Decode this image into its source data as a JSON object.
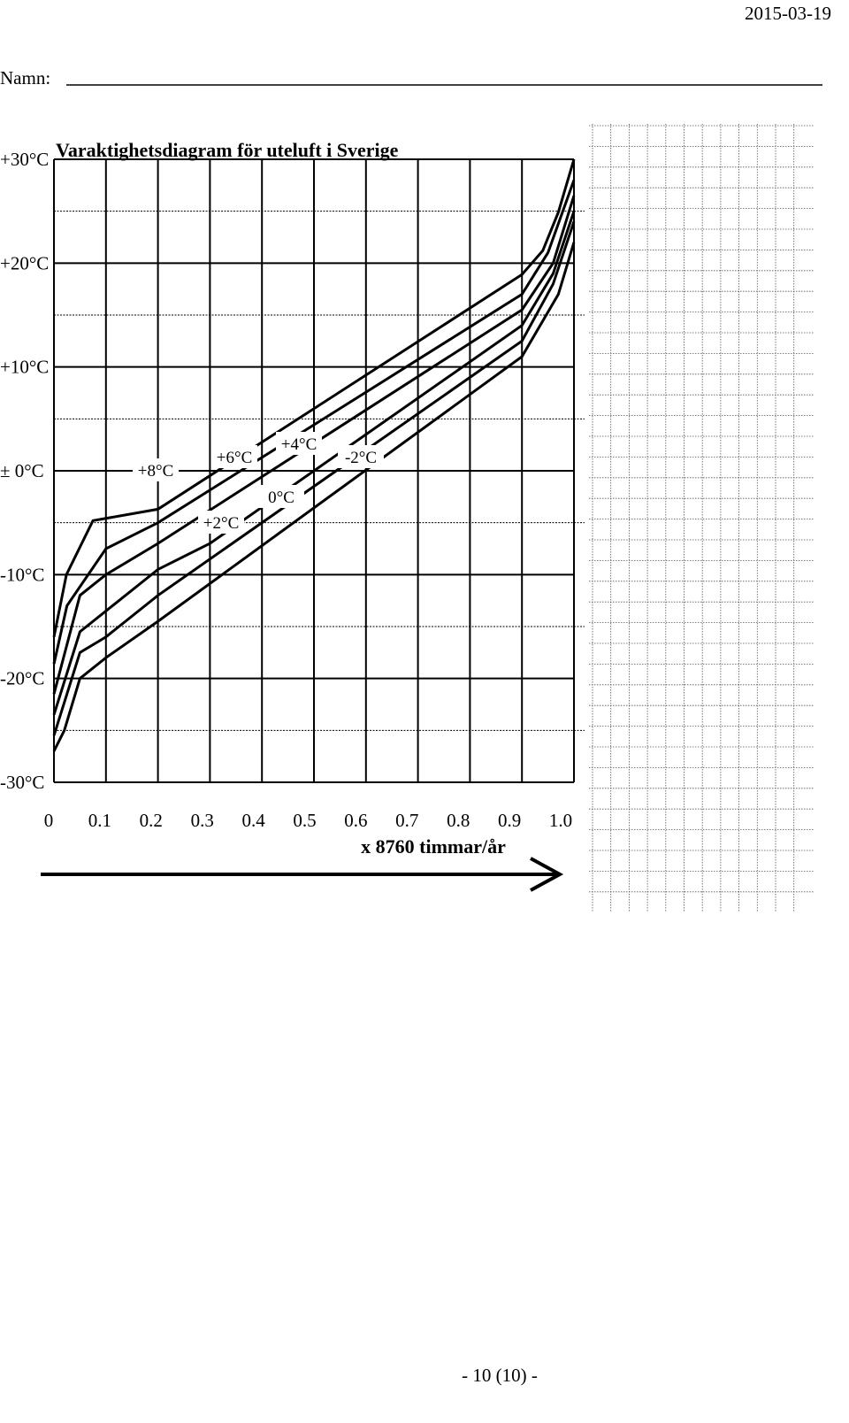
{
  "header": {
    "date": "2015-03-19",
    "name_label": "Namn:"
  },
  "footer": {
    "page_number": "- 10 (10) -"
  },
  "chart_data": {
    "type": "line",
    "title": "Varaktighetsdiagram för uteluft i Sverige",
    "x_label": "x 8760 timmar/år",
    "xlim": [
      0,
      1
    ],
    "ylim": [
      -30,
      30
    ],
    "xticks": [
      0,
      0.1,
      0.2,
      0.3,
      0.4,
      0.5,
      0.6,
      0.7,
      0.8,
      0.9,
      {
        "value": 1,
        "label": "1.0"
      }
    ],
    "yticks": [
      {
        "value": 30,
        "label": "+30°C"
      },
      {
        "value": 20,
        "label": "+20°C"
      },
      {
        "value": 10,
        "label": "+10°C"
      },
      {
        "value": 0,
        "label": "± 0°C"
      },
      {
        "value": -10,
        "label": "-10°C"
      },
      {
        "value": -20,
        "label": "-20°C"
      },
      {
        "value": -30,
        "label": "-30°C"
      }
    ],
    "grid": true,
    "series": [
      {
        "name": "+8°C",
        "color": "#000000",
        "x": [
          0,
          0.024,
          0.075,
          0.2,
          0.9,
          0.94,
          0.97,
          1.0
        ],
        "values": [
          -16,
          -10,
          -4.8,
          -3.7,
          18.9,
          21.2,
          24.9,
          30
        ]
      },
      {
        "name": "+6°C",
        "color": "#000000",
        "x": [
          0,
          0.025,
          0.1,
          0.2,
          0.9,
          0.95,
          1.0
        ],
        "values": [
          -18.6,
          -13,
          -7.5,
          -5,
          17,
          21,
          28
        ]
      },
      {
        "name": "+4°C",
        "color": "#000000",
        "x": [
          0,
          0.05,
          0.1,
          0.2,
          0.9,
          0.96,
          1.0
        ],
        "values": [
          -21.5,
          -12,
          -10,
          -7,
          15.5,
          20,
          26.5
        ]
      },
      {
        "name": "+2°C",
        "color": "#000000",
        "x": [
          0,
          0.05,
          0.1,
          0.2,
          0.3,
          0.9,
          0.96,
          1.0
        ],
        "values": [
          -23.5,
          -15.5,
          -13.5,
          -9.5,
          -7,
          14,
          19,
          25
        ]
      },
      {
        "name": "0°C",
        "color": "#000000",
        "x": [
          0,
          0.05,
          0.1,
          0.2,
          0.9,
          0.96,
          1.0
        ],
        "values": [
          -25.5,
          -17.5,
          -16,
          -12,
          12.5,
          18,
          24
        ]
      },
      {
        "name": "-2°C",
        "color": "#000000",
        "x": [
          0,
          0.02,
          0.05,
          0.1,
          0.2,
          0.9,
          0.97,
          1.0
        ],
        "values": [
          -27,
          -25,
          -20,
          -18,
          -14.5,
          11,
          17,
          22
        ]
      }
    ]
  }
}
